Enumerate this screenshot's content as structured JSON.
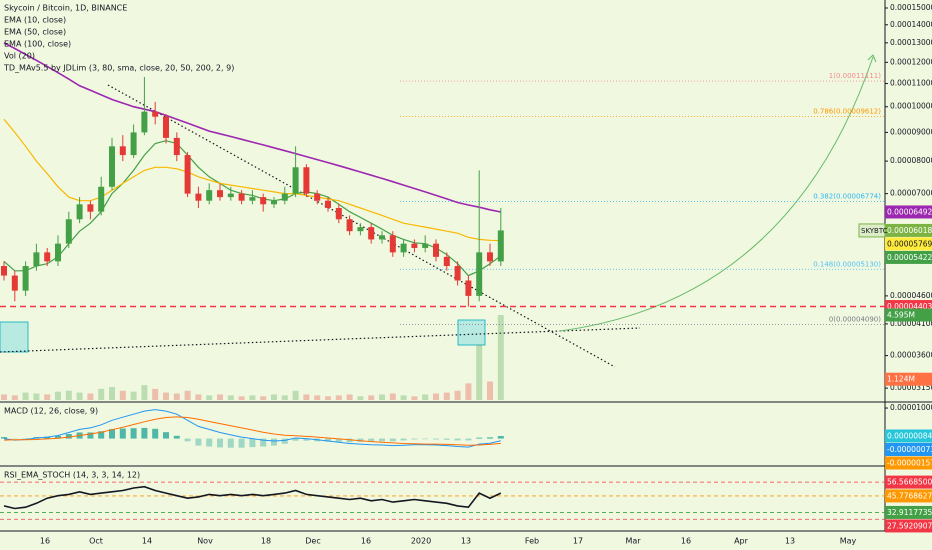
{
  "chart_data": [
    {
      "type": "candlestick",
      "title": "Skycoin / Bitcoin, 1D, BINANCE",
      "log_scale": true,
      "up_color": "#43a047",
      "down_color": "#e53935",
      "ylim": [
        3e-05,
        0.000155
      ],
      "yticks": [
        {
          "value": 0.00015,
          "label": "0.00015000"
        },
        {
          "value": 0.00014,
          "label": "0.00014000"
        },
        {
          "value": 0.00013,
          "label": "0.00013000"
        },
        {
          "value": 0.00012,
          "label": "0.00012000"
        },
        {
          "value": 0.00011,
          "label": "0.00011000"
        },
        {
          "value": 0.0001,
          "label": "0.00010000"
        },
        {
          "value": 9e-05,
          "label": "0.00009000"
        },
        {
          "value": 8e-05,
          "label": "0.00008000"
        },
        {
          "value": 7e-05,
          "label": "0.00007000"
        },
        {
          "value": 4.6e-05,
          "label": "0.00004600"
        },
        {
          "value": 4.1e-05,
          "label": "0.00004100"
        },
        {
          "value": 3.6e-05,
          "label": "0.00003600"
        },
        {
          "value": 3.15e-05,
          "label": "0.00003150"
        }
      ],
      "candles": [
        [
          5.2e-05,
          5.3e-05,
          4.9e-05,
          5e-05
        ],
        [
          5e-05,
          5.1e-05,
          4.5e-05,
          4.7e-05
        ],
        [
          4.7e-05,
          5.3e-05,
          4.6e-05,
          5.2e-05
        ],
        [
          5.2e-05,
          5.7e-05,
          5.1e-05,
          5.5e-05
        ],
        [
          5.5e-05,
          5.6e-05,
          5.2e-05,
          5.3e-05
        ],
        [
          5.3e-05,
          5.9e-05,
          5.2e-05,
          5.7e-05
        ],
        [
          5.7e-05,
          6.5e-05,
          5.6e-05,
          6.3e-05
        ],
        [
          6.3e-05,
          6.9e-05,
          6.2e-05,
          6.7e-05
        ],
        [
          6.7e-05,
          6.8e-05,
          6.3e-05,
          6.5e-05
        ],
        [
          6.5e-05,
          7.5e-05,
          6.4e-05,
          7.2e-05
        ],
        [
          7.2e-05,
          8.8e-05,
          7.1e-05,
          8.5e-05
        ],
        [
          8.5e-05,
          8.9e-05,
          8e-05,
          8.2e-05
        ],
        [
          8.2e-05,
          9.3e-05,
          8.1e-05,
          9e-05
        ],
        [
          9e-05,
          0.000113,
          8.9e-05,
          9.8e-05
        ],
        [
          9.8e-05,
          0.000102,
          9.3e-05,
          9.6e-05
        ],
        [
          9.6e-05,
          9.7e-05,
          8.6e-05,
          8.8e-05
        ],
        [
          8.8e-05,
          9e-05,
          8e-05,
          8.2e-05
        ],
        [
          8.2e-05,
          8.3e-05,
          6.9e-05,
          7e-05
        ],
        [
          7e-05,
          7.2e-05,
          6.6e-05,
          6.8e-05
        ],
        [
          6.8e-05,
          7.3e-05,
          6.7e-05,
          7.1e-05
        ],
        [
          7.1e-05,
          7.3e-05,
          6.8e-05,
          6.9e-05
        ],
        [
          6.9e-05,
          7.2e-05,
          6.8e-05,
          7e-05
        ],
        [
          7e-05,
          7.1e-05,
          6.7e-05,
          6.8e-05
        ],
        [
          6.8e-05,
          7.1e-05,
          6.7e-05,
          6.9e-05
        ],
        [
          6.9e-05,
          7e-05,
          6.5e-05,
          6.7e-05
        ],
        [
          6.7e-05,
          6.9e-05,
          6.6e-05,
          6.8e-05
        ],
        [
          6.8e-05,
          7.2e-05,
          6.7e-05,
          7e-05
        ],
        [
          7e-05,
          8.5e-05,
          6.9e-05,
          7.8e-05
        ],
        [
          7.8e-05,
          7.9e-05,
          6.9e-05,
          7e-05
        ],
        [
          7e-05,
          7.1e-05,
          6.7e-05,
          6.8e-05
        ],
        [
          6.8e-05,
          6.9e-05,
          6.5e-05,
          6.6e-05
        ],
        [
          6.6e-05,
          6.7e-05,
          6.2e-05,
          6.3e-05
        ],
        [
          6.3e-05,
          6.4e-05,
          5.9e-05,
          6e-05
        ],
        [
          6e-05,
          6.2e-05,
          5.9e-05,
          6.1e-05
        ],
        [
          6.1e-05,
          6.2e-05,
          5.7e-05,
          5.8e-05
        ],
        [
          5.8e-05,
          6e-05,
          5.7e-05,
          5.9e-05
        ],
        [
          5.9e-05,
          6e-05,
          5.4e-05,
          5.5e-05
        ],
        [
          5.5e-05,
          5.8e-05,
          5.4e-05,
          5.7e-05
        ],
        [
          5.7e-05,
          5.8e-05,
          5.5e-05,
          5.6e-05
        ],
        [
          5.6e-05,
          5.9e-05,
          5.5e-05,
          5.7e-05
        ],
        [
          5.7e-05,
          5.8e-05,
          5.3e-05,
          5.4e-05
        ],
        [
          5.4e-05,
          5.5e-05,
          5.1e-05,
          5.2e-05
        ],
        [
          5.2e-05,
          5.3e-05,
          4.8e-05,
          4.9e-05
        ],
        [
          4.9e-05,
          5e-05,
          4.4e-05,
          4.6e-05
        ],
        [
          4.6e-05,
          7.7e-05,
          4.5e-05,
          5.5e-05
        ],
        [
          5.5e-05,
          5.7e-05,
          5.2e-05,
          5.3e-05
        ],
        [
          5.3e-05,
          6.6e-05,
          5.2e-05,
          6.018e-05
        ]
      ],
      "series": [
        {
          "name": "EMA (10, close)",
          "color": "#43a047",
          "values": [
            5.3e-05,
            5.1e-05,
            5.1e-05,
            5.2e-05,
            5.25e-05,
            5.4e-05,
            5.7e-05,
            6e-05,
            6.2e-05,
            6.5e-05,
            7e-05,
            7.3e-05,
            7.7e-05,
            8.2e-05,
            8.6e-05,
            8.7e-05,
            8.6e-05,
            8.2e-05,
            7.8e-05,
            7.5e-05,
            7.3e-05,
            7.1e-05,
            7e-05,
            6.95e-05,
            6.85e-05,
            6.8e-05,
            6.85e-05,
            7e-05,
            7.05e-05,
            7e-05,
            6.9e-05,
            6.7e-05,
            6.5e-05,
            6.35e-05,
            6.2e-05,
            6.05e-05,
            5.9e-05,
            5.8e-05,
            5.72e-05,
            5.7e-05,
            5.6e-05,
            5.45e-05,
            5.25e-05,
            5e-05,
            5.1e-05,
            5.25e-05,
            5.422e-05
          ]
        },
        {
          "name": "EMA (50, close)",
          "color": "#f9b800",
          "values": [
            9.5e-05,
            9e-05,
            8.5e-05,
            8e-05,
            7.6e-05,
            7.2e-05,
            6.9e-05,
            6.8e-05,
            6.8e-05,
            6.9e-05,
            7.1e-05,
            7.3e-05,
            7.5e-05,
            7.7e-05,
            7.8e-05,
            7.8e-05,
            7.75e-05,
            7.65e-05,
            7.5e-05,
            7.4e-05,
            7.3e-05,
            7.25e-05,
            7.2e-05,
            7.15e-05,
            7.1e-05,
            7.05e-05,
            7e-05,
            7e-05,
            6.95e-05,
            6.9e-05,
            6.85e-05,
            6.8e-05,
            6.7e-05,
            6.6e-05,
            6.5e-05,
            6.4e-05,
            6.3e-05,
            6.2e-05,
            6.15e-05,
            6.1e-05,
            6.05e-05,
            6e-05,
            5.95e-05,
            5.85e-05,
            5.8e-05,
            5.78e-05,
            5.769e-05
          ]
        },
        {
          "name": "EMA (100, close)",
          "color": "#9c27b0",
          "values": [
            0.00013,
            0.000127,
            0.000124,
            0.000121,
            0.000118,
            0.000115,
            0.000112,
            0.000109,
            0.000107,
            0.000105,
            0.000103,
            0.0001015,
            0.0001,
            9.9e-05,
            9.8e-05,
            9.65e-05,
            9.5e-05,
            9.35e-05,
            9.2e-05,
            9.05e-05,
            8.95e-05,
            8.85e-05,
            8.75e-05,
            8.65e-05,
            8.55e-05,
            8.45e-05,
            8.35e-05,
            8.25e-05,
            8.15e-05,
            8.05e-05,
            7.95e-05,
            7.85e-05,
            7.75e-05,
            7.65e-05,
            7.55e-05,
            7.45e-05,
            7.35e-05,
            7.25e-05,
            7.15e-05,
            7.05e-05,
            6.95e-05,
            6.85e-05,
            6.75e-05,
            6.68e-05,
            6.62e-05,
            6.55e-05,
            6.492e-05
          ]
        }
      ],
      "indicators": [
        "Vol (20)",
        "TD_MAv5.5 by JDLim (3, 80, sma, close, 20, 50, 200, 2, 9)"
      ],
      "volume": {
        "values": [
          300000,
          250000,
          400000,
          350000,
          300000,
          450000,
          500000,
          400000,
          350000,
          600000,
          700000,
          500000,
          450000,
          800000,
          600000,
          400000,
          350000,
          500000,
          300000,
          250000,
          300000,
          250000,
          200000,
          250000,
          200000,
          300000,
          250000,
          500000,
          300000,
          250000,
          200000,
          250000,
          300000,
          200000,
          250000,
          300000,
          350000,
          250000,
          200000,
          300000,
          350000,
          400000,
          500000,
          900000,
          3000000,
          1000000,
          4595000
        ],
        "tags": [
          {
            "label": "4.595M",
            "value": 4595000,
            "color": "#43a047"
          },
          {
            "label": "1.124M",
            "value": 1124000,
            "color": "#ff7043"
          }
        ]
      },
      "fib_levels": [
        {
          "label": "1(0.00011111)",
          "value": 0.00011111,
          "color": "#f28b8b"
        },
        {
          "label": "0.786(0.00009612)",
          "value": 9.612e-05,
          "color": "#ff9800"
        },
        {
          "label": "0.382(0.00006774)",
          "value": 6.774e-05,
          "color": "#29b6f6"
        },
        {
          "label": "0.148(0.00005130)",
          "value": 5.13e-05,
          "color": "#4fc3f7"
        },
        {
          "label": "0(0.00004090)",
          "value": 4.09e-05,
          "color": "#787b86"
        }
      ],
      "price_tags": [
        {
          "label": "0.00006492",
          "value": 6.492e-05,
          "color": "#9c27b0"
        },
        {
          "name": "SKYBTC",
          "label": "0.00006018",
          "value": 6.018e-05,
          "color": "#7cb342"
        },
        {
          "label": "0.00005769",
          "value": 5.769e-05,
          "color": "#ffeb3b"
        },
        {
          "label": "0.00005422",
          "value": 5.422e-05,
          "color": "#43a047"
        },
        {
          "label": "0.00004403",
          "value": 4.403e-05,
          "color": "#f23645",
          "dashed": true
        }
      ]
    },
    {
      "type": "macd",
      "title": "MACD (12, 26, close, 9)",
      "ylim": [
        -8e-06,
        1.1e-05
      ],
      "yticks": [
        {
          "value": 1e-05,
          "label": "0.00001000"
        }
      ],
      "series": [
        {
          "color": "#2196f3",
          "values": [
            0,
            -5e-07,
            -3e-07,
            2e-07,
            5e-07,
            1e-06,
            2e-06,
            3e-06,
            3.5e-06,
            4.5e-06,
            6e-06,
            7e-06,
            8e-06,
            9e-06,
            9.5e-06,
            9e-06,
            8e-06,
            6e-06,
            4e-06,
            3e-06,
            2e-06,
            1.2e-06,
            5e-07,
            0,
            -5e-07,
            -8e-07,
            -6e-07,
            2e-07,
            0,
            -4e-07,
            -8e-07,
            -1.2e-06,
            -1.6e-06,
            -1.8e-06,
            -2e-06,
            -2.1e-06,
            -2.3e-06,
            -2.2e-06,
            -2e-06,
            -2e-06,
            -2.1e-06,
            -2.3e-06,
            -2.6e-06,
            -2.8e-06,
            -1.8e-06,
            -1.5e-06,
            -7.3e-07
          ]
        },
        {
          "color": "#ff6d00",
          "values": [
            -5e-07,
            -4e-07,
            -4e-07,
            -3e-07,
            -1e-07,
            1e-07,
            5e-07,
            1e-06,
            1.5e-06,
            2.1e-06,
            2.9e-06,
            3.7e-06,
            4.6e-06,
            5.5e-06,
            6.3e-06,
            6.9e-06,
            7.1e-06,
            6.9e-06,
            6.3e-06,
            5.6e-06,
            4.9e-06,
            4.2e-06,
            3.5e-06,
            2.8e-06,
            2.1e-06,
            1.5e-06,
            1.1e-06,
            9e-07,
            7e-07,
            5e-07,
            2e-07,
            -1e-07,
            -4e-07,
            -7e-07,
            -1e-06,
            -1.2e-06,
            -1.4e-06,
            -1.6e-06,
            -1.7e-06,
            -1.8e-06,
            -1.8e-06,
            -1.9e-06,
            -2e-06,
            -2.2e-06,
            -2.1e-06,
            -1.9e-06,
            -1.57e-06
          ]
        }
      ],
      "histogram": {
        "color": "#26a69a",
        "values": [
          5e-07,
          -1e-07,
          1e-07,
          5e-07,
          6e-07,
          9e-07,
          1.5e-06,
          2e-06,
          2e-06,
          2.4e-06,
          3.1e-06,
          3.3e-06,
          3.4e-06,
          3.5e-06,
          3.2e-06,
          2.1e-06,
          9e-07,
          -9e-07,
          -2.3e-06,
          -2.6e-06,
          -2.9e-06,
          -3e-06,
          -3e-06,
          -2.8e-06,
          -2.6e-06,
          -2.3e-06,
          -1.7e-06,
          -7e-07,
          -7e-07,
          -9e-07,
          -1e-06,
          -1.1e-06,
          -1.2e-06,
          -1.1e-06,
          -1e-06,
          -9e-07,
          -9e-07,
          -6e-07,
          -3e-07,
          -2e-07,
          -3e-07,
          -4e-07,
          -6e-07,
          -6e-07,
          3e-07,
          4e-07,
          8.4e-07
        ]
      },
      "price_tags": [
        {
          "label": "0.00000084",
          "value": 8.4e-07,
          "color": "#26c6da"
        },
        {
          "label": "-0.00000073",
          "value": -7.3e-07,
          "color": "#2196f3"
        },
        {
          "label": "-0.00000157",
          "value": -1.57e-06,
          "color": "#ff9800"
        }
      ]
    },
    {
      "type": "oscillator",
      "title": "RSI_EMA_STOCH (14, 3, 3, 14, 12)",
      "ylim": [
        20,
        66
      ],
      "series": [
        {
          "color": "#131722",
          "values": [
            38,
            36,
            37,
            40,
            44,
            46,
            47,
            49,
            47,
            48,
            49,
            50,
            52,
            53,
            50,
            48,
            46,
            44,
            45,
            47,
            46,
            47,
            46,
            47,
            46,
            47,
            48,
            50,
            47,
            46,
            45,
            44,
            43,
            44,
            42,
            43,
            41,
            42,
            43,
            42,
            41,
            40,
            38,
            37,
            48,
            44,
            48
          ]
        }
      ],
      "price_tags": [
        {
          "label": "56.56685006",
          "value": 56.56685006,
          "color": "#f23645"
        },
        {
          "label": "45.77686274",
          "value": 45.77686274,
          "color": "#ff9800"
        },
        {
          "label": "32.91177356",
          "value": 32.91177356,
          "color": "#43a047"
        },
        {
          "label": "27.59209074",
          "value": 27.59209074,
          "color": "#f23645"
        }
      ],
      "time_labels": [
        "16",
        "Oct",
        "14",
        "Nov",
        "18",
        "Dec",
        "16",
        "2020",
        "13",
        "Feb",
        "17",
        "Mar",
        "16",
        "Apr",
        "13",
        "May"
      ]
    }
  ]
}
